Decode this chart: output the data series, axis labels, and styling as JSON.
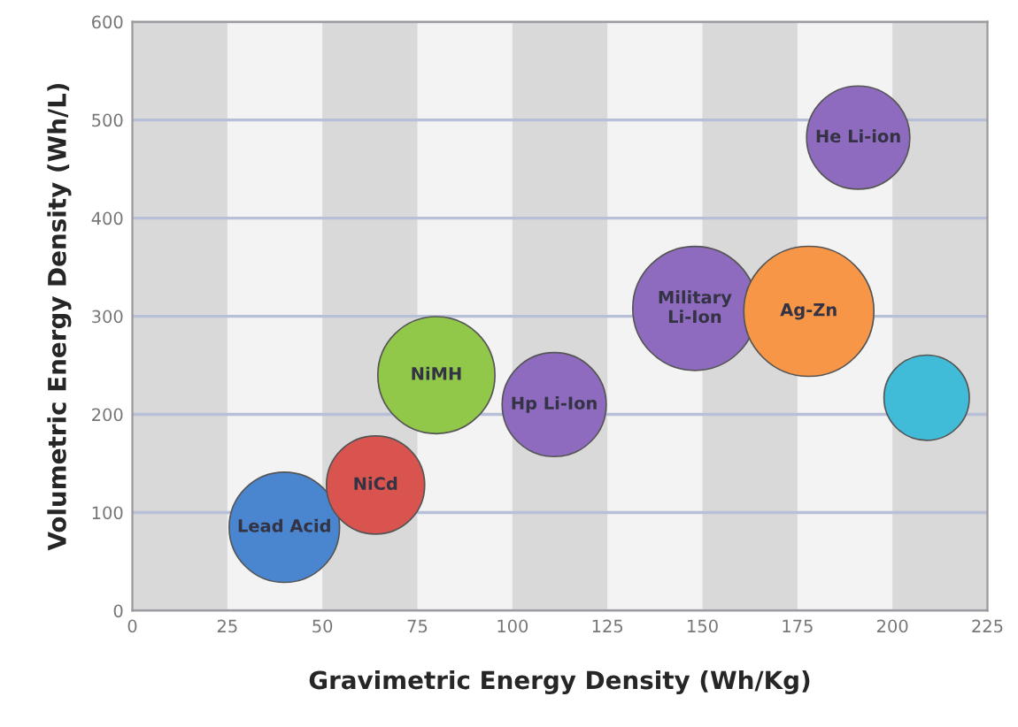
{
  "chart_data": {
    "type": "bubble",
    "xlabel": "Gravimetric Energy Density (Wh/Kg)",
    "ylabel": "Volumetric Energy Density (Wh/L)",
    "xlim": [
      0,
      225
    ],
    "xticks": [
      0,
      25,
      50,
      75,
      100,
      125,
      150,
      175,
      200,
      225
    ],
    "ylim": [
      0,
      600
    ],
    "yticks": [
      0,
      100,
      200,
      300,
      400,
      500,
      600
    ],
    "grid": "y",
    "bands": [
      {
        "axis": "x",
        "from": 0,
        "to": 25,
        "color": "#d9d9d9"
      },
      {
        "axis": "x",
        "from": 50,
        "to": 75,
        "color": "#d9d9d9"
      },
      {
        "axis": "x",
        "from": 100,
        "to": 125,
        "color": "#d9d9d9"
      },
      {
        "axis": "x",
        "from": 150,
        "to": 175,
        "color": "#d9d9d9"
      },
      {
        "axis": "x",
        "from": 200,
        "to": 225,
        "color": "#d9d9d9"
      }
    ],
    "series": [
      {
        "name": "Lead Acid",
        "color": "#4a86d0",
        "x": [
          40
        ],
        "values": [
          85
        ],
        "sizes": [
          0.72
        ]
      },
      {
        "name": "NiCd",
        "color": "#d9534f",
        "x": [
          64
        ],
        "values": [
          128
        ],
        "sizes": [
          0.57
        ]
      },
      {
        "name": "NiMH",
        "color": "#92c84a",
        "x": [
          80
        ],
        "values": [
          240
        ],
        "sizes": [
          0.81
        ]
      },
      {
        "name": "Hp Li-Ion",
        "color": "#8e6bbf",
        "x": [
          111
        ],
        "values": [
          210
        ],
        "sizes": [
          0.64
        ]
      },
      {
        "name": "Military\nLi-Ion",
        "color": "#8e6bbf",
        "x": [
          148
        ],
        "values": [
          308
        ],
        "sizes": [
          0.91
        ]
      },
      {
        "name": "Ag-Zn",
        "color": "#f79646",
        "x": [
          178
        ],
        "values": [
          305
        ],
        "sizes": [
          1
        ]
      },
      {
        "name": "He Li-ion",
        "color": "#8e6bbf",
        "x": [
          191
        ],
        "values": [
          482
        ],
        "sizes": [
          0.63
        ]
      },
      {
        "color": "#40bcd8",
        "x": [
          209
        ],
        "values": [
          217
        ],
        "sizes": [
          0.43
        ]
      }
    ]
  }
}
